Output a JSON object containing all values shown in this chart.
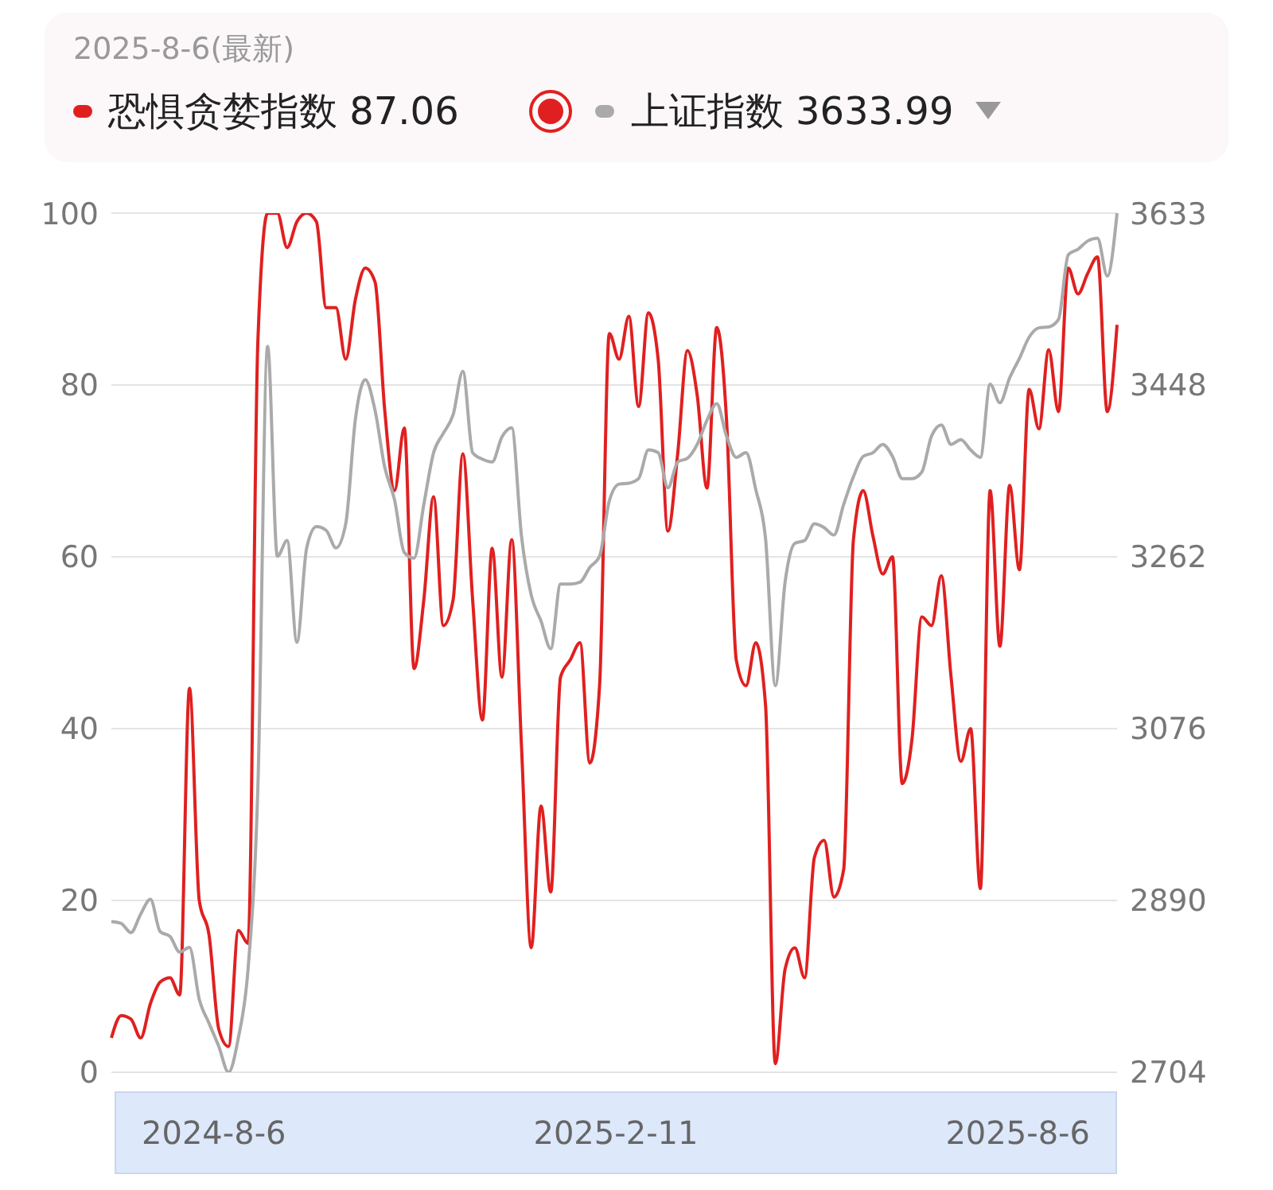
{
  "chart_data": {
    "type": "line",
    "title": "2025-8-6(最新)",
    "categories": [
      null,
      null,
      null,
      null,
      null,
      null,
      null,
      null,
      null,
      null,
      null,
      null,
      null,
      null,
      null,
      null,
      null,
      null,
      null,
      null,
      null,
      null,
      null,
      null,
      null,
      null,
      null,
      null,
      null,
      null,
      null,
      null,
      null,
      null,
      null,
      null,
      null,
      null,
      null,
      null,
      null,
      null,
      null,
      null,
      null,
      null,
      null,
      null,
      null,
      null,
      null,
      null,
      null,
      null,
      null,
      null,
      null,
      null,
      null,
      null,
      null,
      null,
      null,
      null,
      null,
      null,
      null,
      null,
      null,
      null,
      null,
      null,
      null,
      null,
      null,
      null,
      null,
      null,
      null,
      null,
      null,
      null,
      null,
      null,
      null,
      null,
      null,
      null,
      null,
      null,
      null,
      null,
      null,
      null,
      null,
      null,
      null,
      null,
      null,
      null,
      null,
      null,
      null,
      null
    ],
    "series": [
      {
        "name": "恐惧贪婪指数 87.06",
        "color": "#e02020",
        "values": [
          4,
          6.6,
          6.2,
          4,
          8,
          10.5,
          11,
          9,
          44.7,
          20,
          16,
          5,
          3,
          16.5,
          15,
          85,
          100,
          100,
          96,
          99,
          100,
          99,
          89,
          89,
          83,
          90,
          93.6,
          92,
          77,
          67.7,
          75,
          47,
          55,
          67,
          52,
          55,
          72,
          55,
          41,
          61,
          46,
          62,
          38,
          14.5,
          31,
          21,
          46,
          48,
          50,
          36,
          45,
          86,
          83,
          88,
          77.5,
          88.4,
          83,
          63,
          72,
          84,
          78.8,
          68,
          86.7,
          76,
          48,
          45,
          50,
          42.7,
          1,
          12,
          14.5,
          11,
          25,
          27,
          20.4,
          23.6,
          62,
          67.7,
          62.4,
          58,
          60,
          33.6,
          38.8,
          53,
          52,
          57.8,
          46,
          36.2,
          40,
          21.4,
          67.7,
          49.6,
          68.3,
          58.5,
          79.5,
          74.9,
          84.1,
          76.9,
          93.6,
          90.6,
          93,
          94.9,
          76.9,
          87
        ]
      },
      {
        "name": "上证指数 3633.99",
        "color": "#aaaaaa",
        "axis": "y2",
        "values": [
          2867,
          2865,
          2855,
          2875,
          2891,
          2856,
          2851,
          2834,
          2839,
          2783,
          2757,
          2732,
          2704,
          2741,
          2816,
          3011,
          3489,
          3262,
          3279,
          3169,
          3271,
          3294,
          3290,
          3271,
          3297,
          3411,
          3453,
          3420,
          3358,
          3323,
          3266,
          3260,
          3318,
          3374,
          3395,
          3415,
          3462,
          3374,
          3367,
          3364,
          3391,
          3401,
          3284,
          3220,
          3192,
          3162,
          3232,
          3232,
          3234,
          3250,
          3262,
          3322,
          3340,
          3341,
          3346,
          3377,
          3374,
          3336,
          3364,
          3368,
          3383,
          3409,
          3427,
          3392,
          3369,
          3374,
          3334,
          3281,
          3122,
          3234,
          3276,
          3279,
          3297,
          3293,
          3285,
          3318,
          3348,
          3370,
          3374,
          3383,
          3370,
          3346,
          3346,
          3353,
          3392,
          3404,
          3383,
          3388,
          3377,
          3369,
          3448,
          3428,
          3455,
          3476,
          3499,
          3509,
          3510,
          3518,
          3588,
          3594,
          3603,
          3606,
          3565,
          3633
        ]
      }
    ],
    "ylim": [
      0,
      100
    ],
    "yticks": [
      0,
      20,
      40,
      60,
      80,
      100
    ],
    "y2lim": [
      2704,
      3633
    ],
    "y2ticks": [
      2704,
      2890,
      3076,
      3262,
      3448,
      3633
    ],
    "grid": "y",
    "legend": "top left",
    "marker": "none",
    "line_style": "solid",
    "annotations": [
      "2024-8-6",
      "2025-2-11",
      "2025-8-6"
    ]
  }
}
